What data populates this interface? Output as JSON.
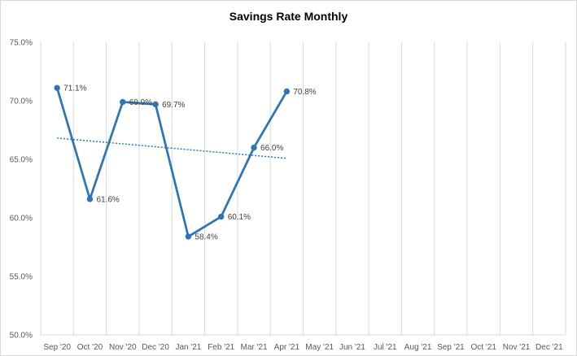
{
  "chart_data": {
    "type": "line",
    "title": "Savings Rate Monthly",
    "xlabel": "",
    "ylabel": "",
    "categories": [
      "Sep '20",
      "Oct '20",
      "Nov '20",
      "Dec '20",
      "Jan '21",
      "Feb '21",
      "Mar '21",
      "Apr '21",
      "May '21",
      "Jun '21",
      "Jul '21",
      "Aug '21",
      "Sep '21",
      "Oct '21",
      "Nov '21",
      "Dec '21"
    ],
    "series": [
      {
        "values": [
          71.1,
          61.6,
          69.9,
          69.7,
          58.4,
          60.1,
          66.0,
          70.8,
          null,
          null,
          null,
          null,
          null,
          null,
          null,
          null
        ],
        "labels": [
          "71.1%",
          "61.6%",
          "69.9%",
          "69.7%",
          "58.4%",
          "60.1%",
          "66.0%",
          "70.8%"
        ],
        "color": "#2e75b6",
        "trendline": "linear"
      }
    ],
    "ylim": [
      50,
      75
    ],
    "yticks": [
      50,
      55,
      60,
      65,
      70,
      75
    ],
    "ytick_labels": [
      "50.0%",
      "55.0%",
      "60.0%",
      "65.0%",
      "70.0%",
      "75.0%"
    ],
    "grid": "vertical",
    "legend": "none"
  }
}
